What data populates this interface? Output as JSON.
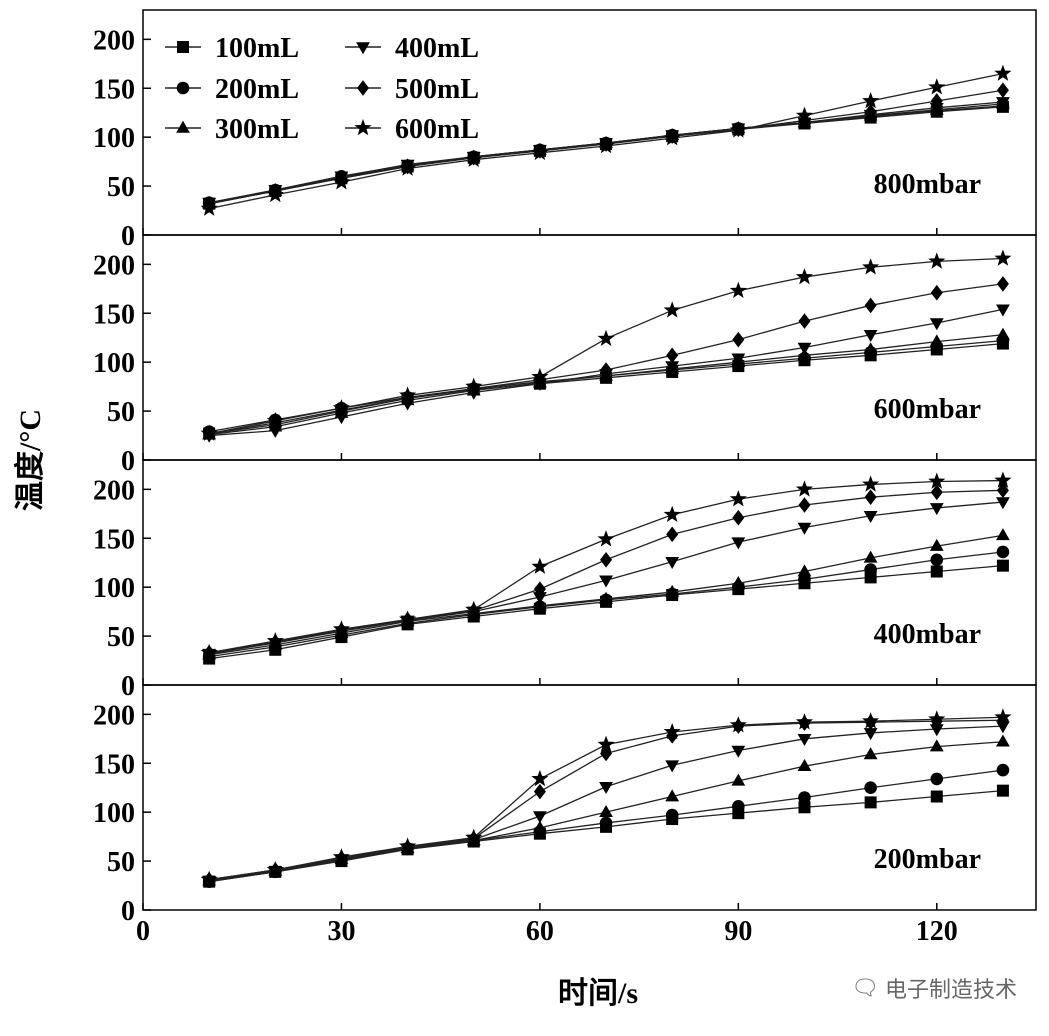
{
  "chart_data": [
    {
      "type": "line",
      "panel_label": "800mbar",
      "x": [
        10,
        20,
        30,
        40,
        50,
        60,
        70,
        80,
        90,
        100,
        110,
        120,
        130
      ],
      "ylim": [
        0,
        230
      ],
      "yticks": [
        0,
        50,
        100,
        150,
        200
      ],
      "series": [
        {
          "name": "100mL",
          "marker": "square",
          "values": [
            32,
            45,
            58,
            70,
            79,
            86,
            93,
            101,
            108,
            114,
            120,
            126,
            131
          ]
        },
        {
          "name": "200mL",
          "marker": "circle",
          "values": [
            33,
            46,
            60,
            71,
            80,
            87,
            94,
            102,
            109,
            115,
            121,
            127,
            132
          ]
        },
        {
          "name": "300mL",
          "marker": "triangle",
          "values": [
            32,
            45,
            59,
            71,
            80,
            87,
            94,
            102,
            109,
            115,
            122,
            128,
            134
          ]
        },
        {
          "name": "400mL",
          "marker": "triangle-down",
          "values": [
            33,
            46,
            60,
            72,
            80,
            87,
            94,
            102,
            109,
            115,
            123,
            130,
            136
          ]
        },
        {
          "name": "500mL",
          "marker": "diamond",
          "values": [
            32,
            45,
            58,
            70,
            79,
            86,
            93,
            101,
            108,
            117,
            126,
            137,
            148
          ]
        },
        {
          "name": "600mL",
          "marker": "star",
          "values": [
            27,
            41,
            54,
            68,
            77,
            84,
            91,
            99,
            107,
            122,
            137,
            151,
            165
          ]
        }
      ]
    },
    {
      "type": "line",
      "panel_label": "600mbar",
      "x": [
        10,
        20,
        30,
        40,
        50,
        60,
        70,
        80,
        90,
        100,
        110,
        120,
        130
      ],
      "ylim": [
        0,
        230
      ],
      "yticks": [
        0,
        50,
        100,
        150,
        200
      ],
      "series": [
        {
          "name": "100mL",
          "marker": "square",
          "values": [
            27,
            38,
            51,
            63,
            72,
            78,
            84,
            90,
            96,
            102,
            107,
            113,
            119
          ]
        },
        {
          "name": "200mL",
          "marker": "circle",
          "values": [
            29,
            41,
            53,
            64,
            73,
            80,
            86,
            92,
            98,
            104,
            110,
            116,
            122
          ]
        },
        {
          "name": "300mL",
          "marker": "triangle",
          "values": [
            26,
            34,
            48,
            61,
            71,
            79,
            86,
            93,
            100,
            107,
            113,
            121,
            128
          ]
        },
        {
          "name": "400mL",
          "marker": "triangle-down",
          "values": [
            25,
            30,
            44,
            58,
            69,
            78,
            88,
            96,
            104,
            115,
            128,
            140,
            154
          ]
        },
        {
          "name": "500mL",
          "marker": "diamond",
          "values": [
            27,
            36,
            50,
            63,
            73,
            82,
            92,
            107,
            123,
            142,
            158,
            171,
            180
          ]
        },
        {
          "name": "600mL",
          "marker": "star",
          "values": [
            27,
            40,
            53,
            66,
            75,
            85,
            124,
            153,
            173,
            187,
            197,
            203,
            206
          ]
        }
      ]
    },
    {
      "type": "line",
      "panel_label": "400mbar",
      "x": [
        10,
        20,
        30,
        40,
        50,
        60,
        70,
        80,
        90,
        100,
        110,
        120,
        130
      ],
      "ylim": [
        0,
        230
      ],
      "yticks": [
        0,
        50,
        100,
        150,
        200
      ],
      "series": [
        {
          "name": "100mL",
          "marker": "square",
          "values": [
            27,
            36,
            49,
            62,
            70,
            78,
            85,
            92,
            98,
            104,
            110,
            116,
            122
          ]
        },
        {
          "name": "200mL",
          "marker": "circle",
          "values": [
            29,
            39,
            51,
            63,
            72,
            80,
            87,
            93,
            100,
            108,
            118,
            128,
            136
          ]
        },
        {
          "name": "300mL",
          "marker": "triangle",
          "values": [
            31,
            41,
            53,
            65,
            73,
            81,
            88,
            95,
            104,
            116,
            130,
            142,
            153
          ]
        },
        {
          "name": "400mL",
          "marker": "triangle-down",
          "values": [
            32,
            43,
            55,
            66,
            75,
            90,
            107,
            126,
            146,
            161,
            173,
            181,
            187
          ]
        },
        {
          "name": "500mL",
          "marker": "diamond",
          "values": [
            33,
            44,
            56,
            67,
            76,
            98,
            128,
            154,
            171,
            184,
            192,
            197,
            199
          ]
        },
        {
          "name": "600mL",
          "marker": "star",
          "values": [
            33,
            45,
            57,
            67,
            77,
            121,
            149,
            174,
            190,
            200,
            205,
            208,
            209
          ]
        }
      ]
    },
    {
      "type": "line",
      "panel_label": "200mbar",
      "x": [
        10,
        20,
        30,
        40,
        50,
        60,
        70,
        80,
        90,
        100,
        110,
        120,
        130
      ],
      "ylim": [
        0,
        230
      ],
      "yticks": [
        0,
        50,
        100,
        150,
        200
      ],
      "series": [
        {
          "name": "100mL",
          "marker": "square",
          "values": [
            29,
            39,
            50,
            62,
            70,
            78,
            85,
            93,
            99,
            105,
            110,
            116,
            122
          ]
        },
        {
          "name": "200mL",
          "marker": "circle",
          "values": [
            29,
            39,
            51,
            63,
            71,
            80,
            89,
            97,
            106,
            115,
            125,
            134,
            143
          ]
        },
        {
          "name": "300mL",
          "marker": "triangle",
          "values": [
            30,
            40,
            52,
            63,
            71,
            84,
            100,
            116,
            132,
            147,
            159,
            167,
            172
          ]
        },
        {
          "name": "400mL",
          "marker": "triangle-down",
          "values": [
            30,
            40,
            52,
            63,
            72,
            96,
            126,
            148,
            163,
            175,
            181,
            185,
            188
          ]
        },
        {
          "name": "500mL",
          "marker": "diamond",
          "values": [
            31,
            41,
            53,
            64,
            73,
            121,
            160,
            178,
            188,
            191,
            192,
            193,
            194
          ]
        },
        {
          "name": "600mL",
          "marker": "star",
          "values": [
            31,
            41,
            54,
            65,
            74,
            134,
            169,
            182,
            189,
            192,
            193,
            195,
            197
          ]
        }
      ]
    }
  ],
  "axes": {
    "xlabel": "时间/s",
    "ylabel": "温度/°C",
    "xlim": [
      0,
      135
    ],
    "xticks": [
      0,
      30,
      60,
      90,
      120
    ]
  },
  "legend": {
    "placement": "top-left of top panel",
    "columns": 2
  },
  "watermark": {
    "text": "电子制造技术",
    "icon": "wechat-icon"
  }
}
